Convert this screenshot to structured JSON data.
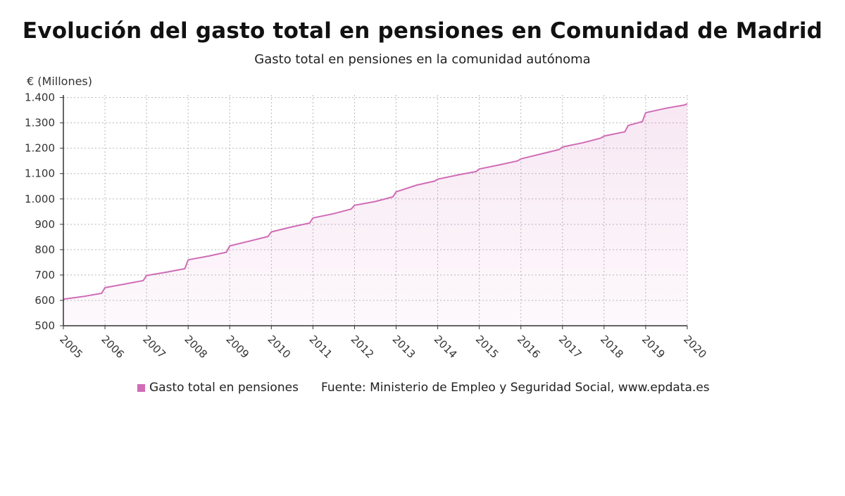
{
  "title": "Evolución del gasto total en pensiones en Comunidad de Madrid",
  "subtitle": "Gasto total en pensiones en la comunidad autónoma",
  "legend": {
    "label": "Gasto total en pensiones",
    "color": "#d06cb6"
  },
  "source": "Fuente: Ministerio de Empleo y Seguridad Social, www.epdata.es",
  "chart_data": {
    "type": "area",
    "title": "Evolución del gasto total en pensiones en Comunidad de Madrid",
    "subtitle": "Gasto total en pensiones en la comunidad autónoma",
    "ylabel": "€ (Millones)",
    "xlabel": "",
    "xlim": [
      2005,
      2020
    ],
    "ylim": [
      500,
      1400
    ],
    "y_ticks": [
      500,
      600,
      700,
      800,
      900,
      1000,
      1100,
      1200,
      1300,
      1400
    ],
    "y_tick_labels": [
      "500",
      "600",
      "700",
      "800",
      "900",
      "1.000",
      "1.100",
      "1.200",
      "1.300",
      "1.400"
    ],
    "x_ticks": [
      "2005",
      "2006",
      "2007",
      "2008",
      "2009",
      "2010",
      "2011",
      "2012",
      "2013",
      "2014",
      "2015",
      "2016",
      "2017",
      "2018",
      "2019",
      "2020"
    ],
    "grid": true,
    "legend_position": "bottom",
    "series": [
      {
        "name": "Gasto total en pensiones",
        "color": "#d06cb6",
        "x": [
          2005.0,
          2005.5,
          2005.92,
          2006.0,
          2006.5,
          2006.92,
          2007.0,
          2007.5,
          2007.92,
          2008.0,
          2008.5,
          2008.92,
          2009.0,
          2009.5,
          2009.92,
          2010.0,
          2010.5,
          2010.92,
          2011.0,
          2011.5,
          2011.92,
          2012.0,
          2012.5,
          2012.92,
          2013.0,
          2013.5,
          2013.92,
          2014.0,
          2014.5,
          2014.92,
          2015.0,
          2015.5,
          2015.92,
          2016.0,
          2016.5,
          2016.92,
          2017.0,
          2017.5,
          2017.92,
          2018.0,
          2018.5,
          2018.58,
          2018.92,
          2019.0,
          2019.5,
          2019.92,
          2020.0
        ],
        "y": [
          605,
          616,
          628,
          650,
          665,
          678,
          698,
          712,
          725,
          760,
          775,
          790,
          815,
          835,
          852,
          870,
          890,
          905,
          925,
          942,
          960,
          975,
          990,
          1008,
          1028,
          1055,
          1070,
          1078,
          1095,
          1108,
          1118,
          1135,
          1150,
          1158,
          1178,
          1195,
          1205,
          1222,
          1240,
          1248,
          1265,
          1290,
          1305,
          1340,
          1358,
          1370,
          1375
        ]
      }
    ]
  }
}
